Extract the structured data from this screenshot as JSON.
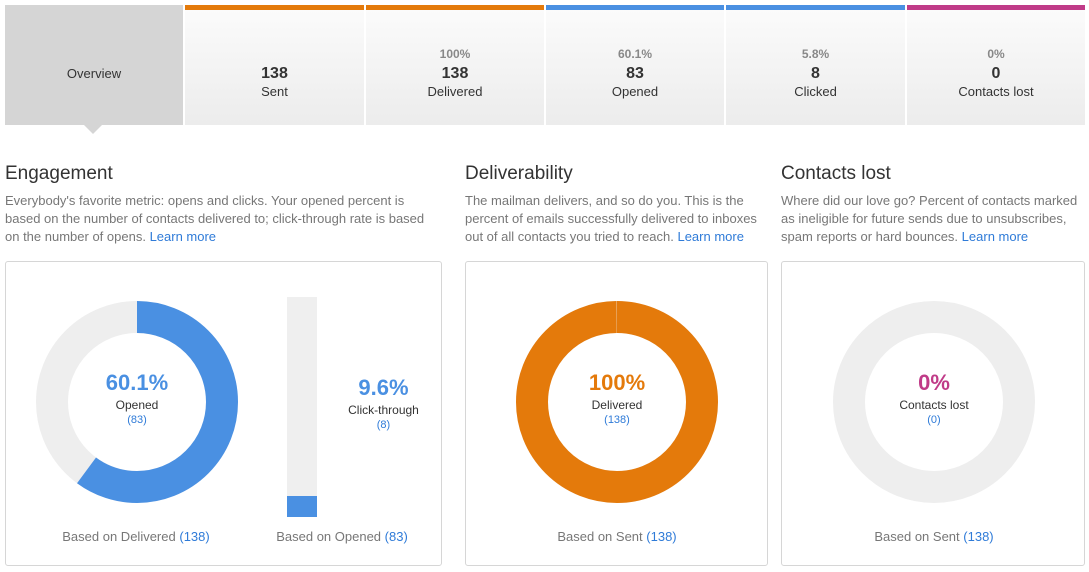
{
  "colors": {
    "sent": "#e47a0b",
    "delivered": "#e47a0b",
    "opened": "#4a90e2",
    "clicked": "#4a90e2",
    "lost": "#c03b88",
    "track": "#eeeeee"
  },
  "tabs": {
    "overview": {
      "label": "Overview"
    },
    "sent": {
      "number": "138",
      "label": "Sent"
    },
    "delivered": {
      "percent": "100%",
      "number": "138",
      "label": "Delivered"
    },
    "opened": {
      "percent": "60.1%",
      "number": "83",
      "label": "Opened"
    },
    "clicked": {
      "percent": "5.8%",
      "number": "8",
      "label": "Clicked"
    },
    "lost": {
      "percent": "0%",
      "number": "0",
      "label": "Contacts lost"
    }
  },
  "engagement": {
    "title": "Engagement",
    "description": "Everybody's favorite metric: opens and clicks. Your opened percent is based on the number of contacts delivered to; click-through rate is based on the number of opens.",
    "learn_more": "Learn more",
    "opened": {
      "percent": "60.1%",
      "fraction": 0.601,
      "label": "Opened",
      "count": "(83)",
      "based_on": "Based on Delivered",
      "based_count": "(138)"
    },
    "click": {
      "percent": "9.6%",
      "fraction": 0.096,
      "label": "Click-through",
      "count": "(8)",
      "based_on": "Based on Opened",
      "based_count": "(83)"
    }
  },
  "deliverability": {
    "title": "Deliverability",
    "description": "The mailman delivers, and so do you. This is the percent of emails successfully delivered to inboxes out of all contacts you tried to reach.",
    "learn_more": "Learn more",
    "percent": "100%",
    "fraction": 0.999,
    "label": "Delivered",
    "count": "(138)",
    "based_on": "Based on Sent",
    "based_count": "(138)"
  },
  "contacts_lost": {
    "title": "Contacts lost",
    "description": "Where did our love go? Percent of contacts marked as ineligible for future sends due to unsubscribes, spam reports or hard bounces.",
    "learn_more": "Learn more",
    "percent": "0%",
    "fraction": 0,
    "label": "Contacts lost",
    "count": "(0)",
    "based_on": "Based on Sent",
    "based_count": "(138)"
  }
}
